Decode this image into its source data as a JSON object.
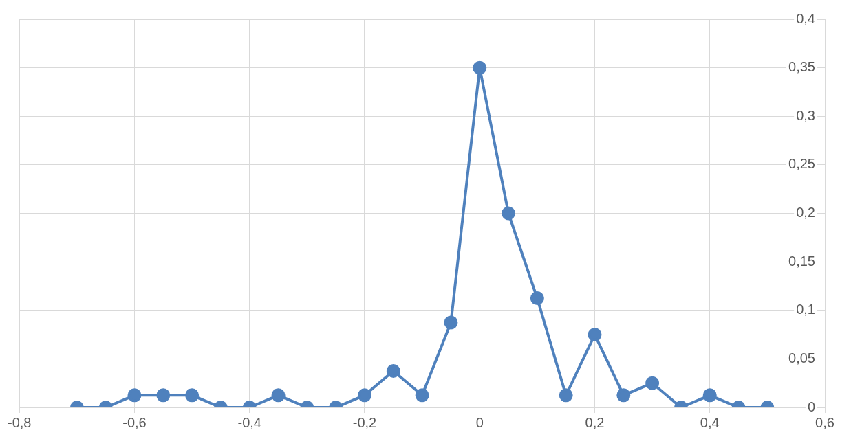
{
  "chart_data": {
    "type": "line",
    "x": [
      -0.7,
      -0.65,
      -0.6,
      -0.55,
      -0.5,
      -0.45,
      -0.4,
      -0.35,
      -0.3,
      -0.25,
      -0.2,
      -0.15,
      -0.1,
      -0.05,
      0,
      0.05,
      0.1,
      0.15,
      0.2,
      0.25,
      0.3,
      0.35,
      0.4,
      0.45,
      0.5
    ],
    "values": [
      0,
      0,
      0.0125,
      0.0125,
      0.0125,
      0,
      0,
      0.0125,
      0,
      0,
      0.0125,
      0.0375,
      0.0125,
      0.0875,
      0.35,
      0.2,
      0.1125,
      0.0125,
      0.075,
      0.0125,
      0.025,
      0,
      0.0125,
      0,
      0
    ],
    "color": "#4f81bd",
    "marker": "circle",
    "line_style": "solid",
    "grid": true,
    "xlim": [
      -0.8,
      0.6
    ],
    "xticks": [
      {
        "value": -0.8,
        "label": "-0,8"
      },
      {
        "value": -0.6,
        "label": "-0,6"
      },
      {
        "value": -0.4,
        "label": "-0,4"
      },
      {
        "value": -0.2,
        "label": "-0,2"
      },
      0,
      {
        "value": 0.2,
        "label": "0,2"
      },
      {
        "value": 0.4,
        "label": "0,4"
      },
      {
        "value": 0.6,
        "label": "0,6"
      }
    ],
    "ylim": [
      0,
      0.4
    ],
    "yticks": [
      0,
      {
        "value": 0.05,
        "label": "0,05"
      },
      {
        "value": 0.1,
        "label": "0,1"
      },
      {
        "value": 0.15,
        "label": "0,15"
      },
      {
        "value": 0.2,
        "label": "0,2"
      },
      {
        "value": 0.25,
        "label": "0,25"
      },
      {
        "value": 0.3,
        "label": "0,3"
      },
      {
        "value": 0.35,
        "label": "0,35"
      },
      {
        "value": 0.4,
        "label": "0,4"
      }
    ]
  }
}
